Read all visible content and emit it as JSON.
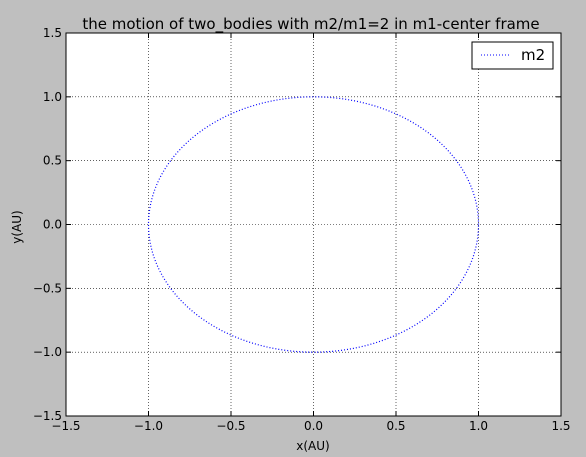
{
  "chart_data": {
    "type": "line",
    "title": "the motion of two_bodies with m2/m1=2 in m1-center frame",
    "xlabel": "x(AU)",
    "ylabel": "y(AU)",
    "xlim": [
      -1.5,
      1.5
    ],
    "ylim": [
      -1.5,
      1.5
    ],
    "xticks": [
      "−1.5",
      "−1.0",
      "−0.5",
      "0.0",
      "0.5",
      "1.0",
      "1.5"
    ],
    "yticks": [
      "−1.5",
      "−1.0",
      "−0.5",
      "0.0",
      "0.5",
      "1.0",
      "1.5"
    ],
    "grid": true,
    "legend_position": "top-right",
    "series": [
      {
        "name": "m2",
        "shape": "circle",
        "center": [
          0,
          0
        ],
        "radius": 1.0,
        "line_style": "dotted",
        "color": "#0000ff"
      }
    ]
  },
  "colors": {
    "figure_background": "#bfbfbf",
    "axes_background": "#ffffff",
    "series": "#0000ff",
    "grid": "#000000"
  }
}
